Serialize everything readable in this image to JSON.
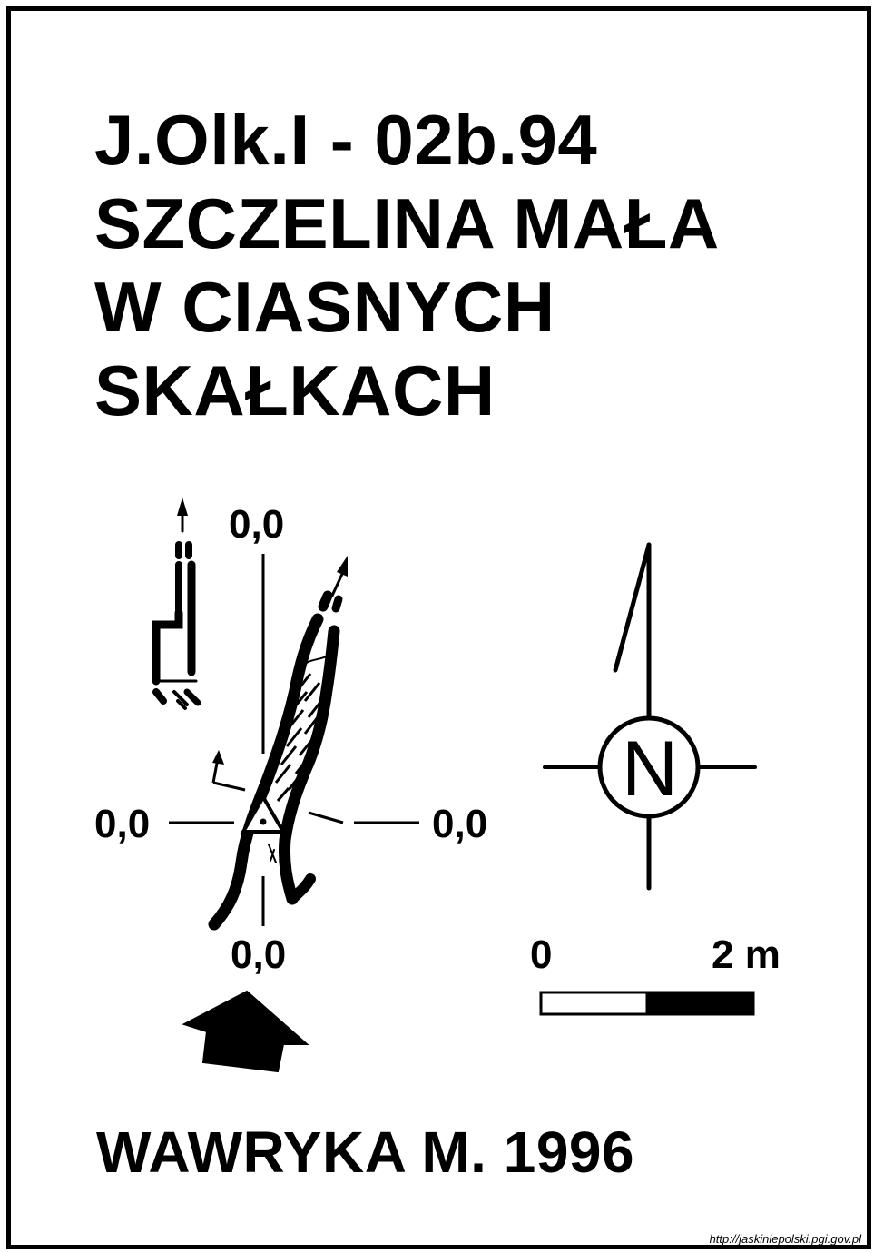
{
  "title": {
    "line1": "J.Olk.I - 02b.94",
    "line2": "SZCZELINA MAŁA",
    "line3": "W CIASNYCH",
    "line4": "SKAŁKACH"
  },
  "plan": {
    "label_top": "0,0",
    "label_left": "0,0",
    "label_right": "0,0",
    "label_bottom": "0,0"
  },
  "north_arrow": {
    "letter": "N"
  },
  "scale_bar": {
    "start_label": "0",
    "end_label": "2 m"
  },
  "author": "WAWRYKA M. 1996",
  "source": "http://jaskiniepolski.pgi.gov.pl"
}
